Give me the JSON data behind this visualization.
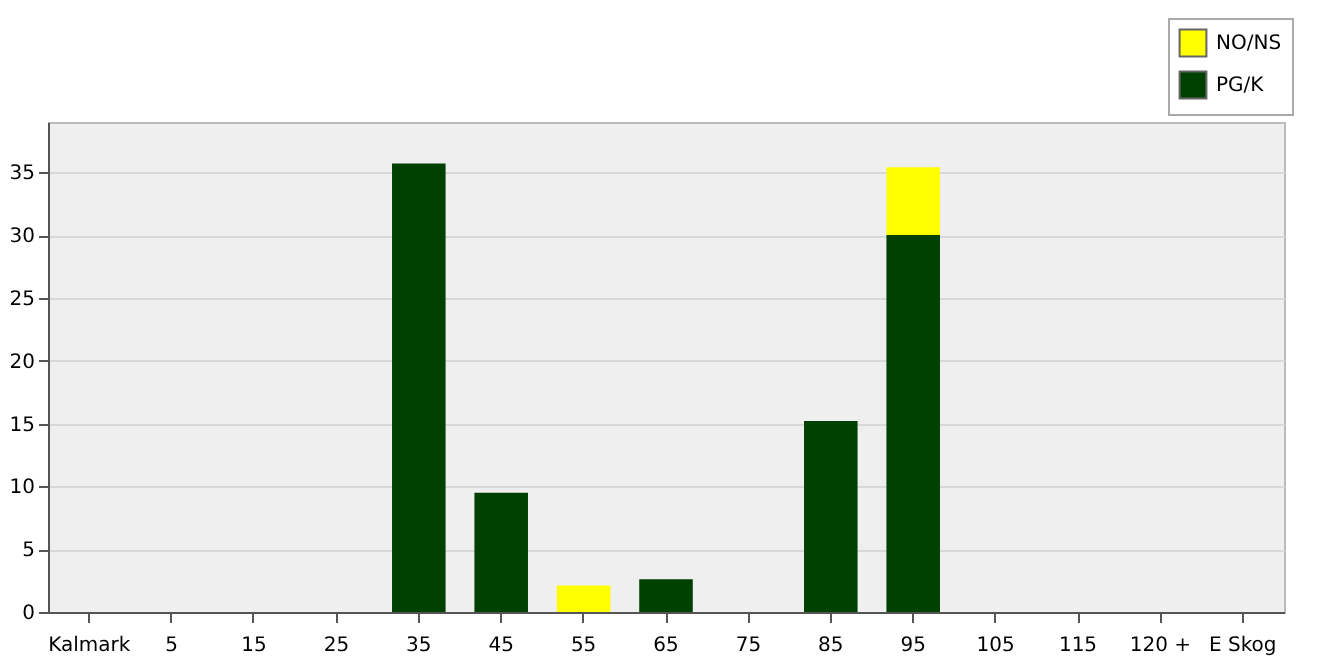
{
  "chart_data": {
    "type": "bar",
    "stacked": true,
    "categories": [
      "Kalmark",
      "5",
      "15",
      "25",
      "35",
      "45",
      "55",
      "65",
      "75",
      "85",
      "95",
      "105",
      "115",
      "120 +",
      "E Skog"
    ],
    "series": [
      {
        "name": "PG/K",
        "color": "#004000",
        "values": [
          0,
          0,
          0,
          0,
          35.7,
          9.5,
          0,
          2.6,
          0,
          15.2,
          30.0,
          0,
          0,
          0,
          0
        ]
      },
      {
        "name": "NO/NS",
        "color": "#ffff00",
        "values": [
          0,
          0,
          0,
          0,
          0,
          0,
          2.1,
          0,
          0,
          0,
          5.4,
          0,
          0,
          0,
          0
        ]
      }
    ],
    "ylim": [
      0,
      39
    ],
    "yticks": [
      0,
      5,
      10,
      15,
      20,
      25,
      30,
      35
    ],
    "grid": "y",
    "legend": "top right"
  }
}
